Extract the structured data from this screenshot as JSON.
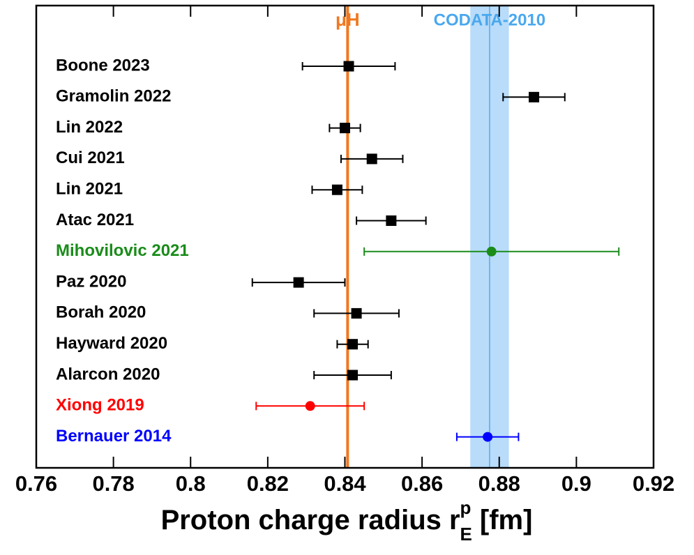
{
  "chart_data": {
    "type": "forest",
    "categories": [
      "Boone 2023",
      "Gramolin 2022",
      "Lin 2022",
      "Cui 2021",
      "Lin 2021",
      "Atac 2021",
      "Mihovilovic 2021",
      "Paz 2020",
      "Borah 2020",
      "Hayward 2020",
      "Alarcon 2020",
      "Xiong 2019",
      "Bernauer 2014"
    ],
    "values": [
      0.841,
      0.889,
      0.84,
      0.847,
      0.838,
      0.852,
      0.878,
      0.828,
      0.843,
      0.842,
      0.842,
      0.831,
      0.877
    ],
    "errors": [
      0.012,
      0.008,
      0.004,
      0.008,
      0.0065,
      0.009,
      0.033,
      0.012,
      0.011,
      0.004,
      0.01,
      0.014,
      0.008
    ],
    "colors": [
      "#000000",
      "#000000",
      "#000000",
      "#000000",
      "#000000",
      "#000000",
      "#1a8c1a",
      "#000000",
      "#000000",
      "#000000",
      "#000000",
      "#ff0000",
      "#0000ff"
    ],
    "markers": [
      "square",
      "square",
      "square",
      "square",
      "square",
      "square",
      "circle",
      "square",
      "square",
      "square",
      "square",
      "circle",
      "circle"
    ],
    "reference_line": {
      "label": "μH",
      "value": 0.8407,
      "color": "#f07820"
    },
    "band": {
      "label": "CODATA-2010",
      "value": 0.8775,
      "error": 0.005,
      "color": "#b8dcfa",
      "line_color": "#5aaae8",
      "label_color": "#4aa8ee"
    },
    "xlabel": {
      "text": "Proton charge radius r",
      "sup": "p",
      "sub": "E",
      "unit": " [fm]"
    },
    "xlim": [
      0.76,
      0.92
    ],
    "xticks": [
      0.76,
      0.78,
      0.8,
      0.82,
      0.84,
      0.86,
      0.88,
      0.9,
      0.92
    ]
  }
}
